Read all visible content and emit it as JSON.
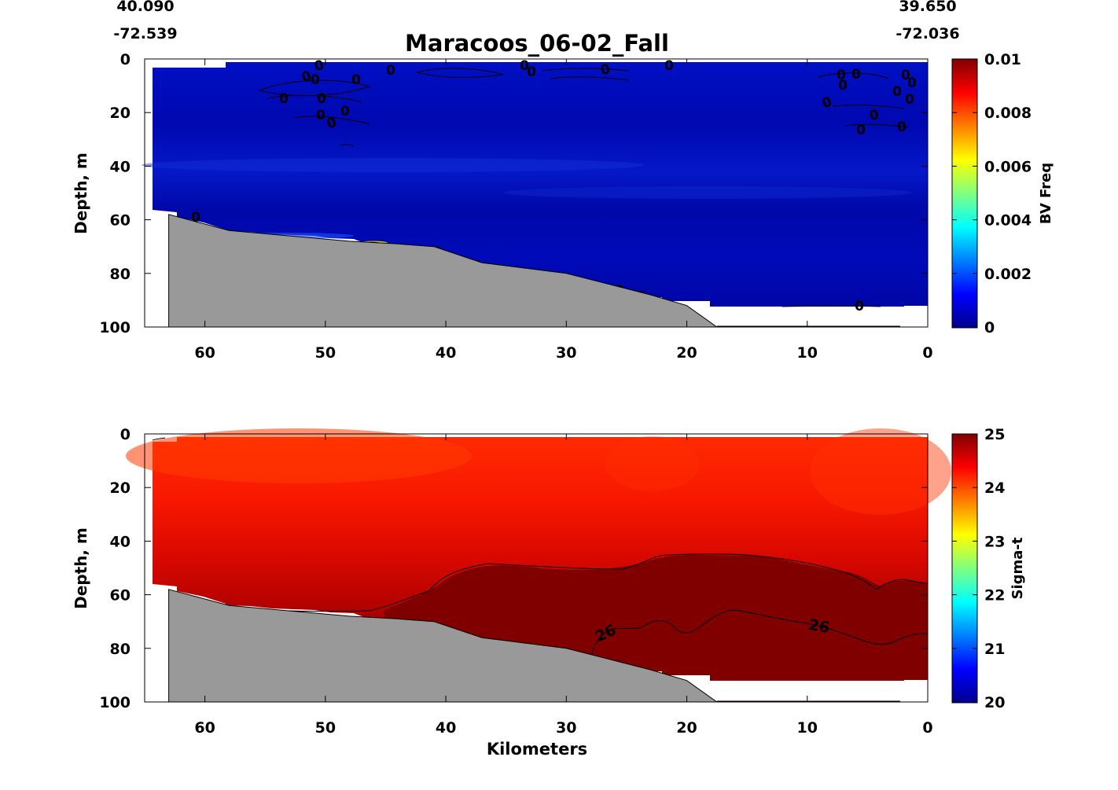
{
  "header": {
    "start_lat": "40.090",
    "start_lon": "-72.539",
    "end_lat": "39.650",
    "end_lon": "-72.036"
  },
  "chart_data": [
    {
      "type": "heatmap",
      "title": "Maracoos_06-02_Fall",
      "xlabel": "",
      "ylabel": "Depth, m",
      "colorbar_label": "BV Freq",
      "x_ticks": [
        "60",
        "50",
        "40",
        "30",
        "20",
        "10",
        "0"
      ],
      "y_ticks": [
        "0",
        "20",
        "40",
        "60",
        "80",
        "100"
      ],
      "colorbar_ticks": [
        "0",
        "0.002",
        "0.004",
        "0.006",
        "0.008",
        "0.01"
      ],
      "xlim": [
        65,
        0
      ],
      "ylim": [
        0,
        100
      ],
      "clim": [
        0,
        0.01
      ],
      "colormap": "jet",
      "dominant_value": 0.0005,
      "contour_labels": [
        "0",
        "0",
        "0",
        "0",
        "0",
        "0",
        "0",
        "0",
        "0",
        "0",
        "0",
        "0",
        "0",
        "0",
        "0",
        "0",
        "0",
        "0",
        "0",
        "0",
        "0",
        "0",
        "0",
        "0",
        "0"
      ],
      "bathymetry": {
        "distance_km": [
          63,
          58,
          53,
          48,
          44,
          41,
          37,
          30,
          23,
          20,
          17.5
        ],
        "depth_m": [
          58,
          64,
          66,
          68,
          69,
          70,
          76,
          80,
          88,
          92,
          100
        ],
        "color": "#999999"
      }
    },
    {
      "type": "heatmap",
      "title": "",
      "xlabel": "Kilometers",
      "ylabel": "Depth, m",
      "colorbar_label": "Sigma-t",
      "x_ticks": [
        "60",
        "50",
        "40",
        "30",
        "20",
        "10",
        "0"
      ],
      "y_ticks": [
        "0",
        "20",
        "40",
        "60",
        "80",
        "100"
      ],
      "colorbar_ticks": [
        "20",
        "21",
        "22",
        "23",
        "24",
        "25"
      ],
      "xlim": [
        65,
        0
      ],
      "ylim": [
        0,
        100
      ],
      "clim": [
        20,
        25
      ],
      "colormap": "jet",
      "contour_labels": [
        "26",
        "26"
      ],
      "bathymetry": {
        "distance_km": [
          63,
          58,
          53,
          48,
          44,
          41,
          37,
          30,
          23,
          20,
          17.5
        ],
        "depth_m": [
          58,
          64,
          66,
          68,
          69,
          70,
          76,
          80,
          88,
          92,
          100
        ],
        "color": "#999999"
      }
    }
  ]
}
